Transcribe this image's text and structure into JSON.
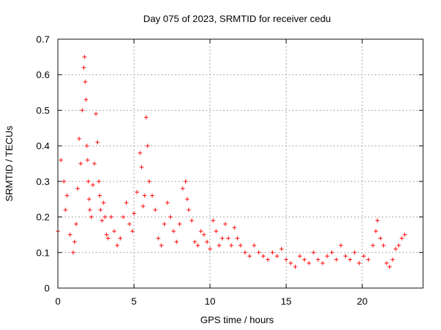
{
  "chart_data": {
    "type": "scatter",
    "title": "Day 075 of 2023, SRMTID for receiver cedu",
    "xlabel": "GPS time / hours",
    "ylabel": "SRMTID / TECUs",
    "xlim": [
      0,
      24
    ],
    "ylim": [
      0,
      0.7
    ],
    "xticks": [
      0,
      5,
      10,
      15,
      20
    ],
    "yticks": [
      0,
      0.1,
      0.2,
      0.3,
      0.4,
      0.5,
      0.6,
      0.7
    ],
    "xtick_labels": [
      "0",
      "5",
      "10",
      "15",
      "20"
    ],
    "ytick_labels": [
      "0",
      "0.1",
      "0.2",
      "0.3",
      "0.4",
      "0.5",
      "0.6",
      "0.7"
    ],
    "grid": true,
    "marker": "+",
    "color": "#ff0000",
    "series": [
      {
        "name": "cedu",
        "x": [
          0.0,
          0.2,
          0.4,
          0.5,
          0.6,
          0.8,
          1.0,
          1.1,
          1.2,
          1.3,
          1.4,
          1.5,
          1.6,
          1.7,
          1.75,
          1.8,
          1.85,
          1.9,
          1.95,
          2.0,
          2.05,
          2.1,
          2.2,
          2.3,
          2.4,
          2.5,
          2.6,
          2.7,
          2.75,
          2.8,
          2.9,
          3.0,
          3.1,
          3.2,
          3.3,
          3.5,
          3.7,
          3.9,
          4.1,
          4.3,
          4.5,
          4.7,
          4.9,
          5.0,
          5.2,
          5.4,
          5.5,
          5.6,
          5.7,
          5.8,
          5.9,
          6.0,
          6.2,
          6.4,
          6.6,
          6.8,
          7.0,
          7.2,
          7.4,
          7.6,
          7.8,
          8.0,
          8.2,
          8.4,
          8.5,
          8.6,
          8.8,
          9.0,
          9.2,
          9.4,
          9.6,
          9.8,
          10.0,
          10.2,
          10.4,
          10.6,
          10.8,
          11.0,
          11.2,
          11.4,
          11.6,
          11.8,
          12.0,
          12.3,
          12.6,
          12.9,
          13.2,
          13.5,
          13.8,
          14.1,
          14.4,
          14.7,
          15.0,
          15.3,
          15.6,
          15.9,
          16.2,
          16.5,
          16.8,
          17.1,
          17.4,
          17.7,
          18.0,
          18.3,
          18.6,
          18.9,
          19.2,
          19.5,
          19.8,
          20.1,
          20.4,
          20.7,
          20.9,
          21.0,
          21.2,
          21.4,
          21.6,
          21.8,
          22.0,
          22.2,
          22.4,
          22.6,
          22.8
        ],
        "y": [
          0.16,
          0.36,
          0.3,
          0.22,
          0.26,
          0.15,
          0.1,
          0.13,
          0.18,
          0.28,
          0.42,
          0.35,
          0.5,
          0.62,
          0.65,
          0.58,
          0.53,
          0.4,
          0.36,
          0.3,
          0.25,
          0.22,
          0.2,
          0.29,
          0.35,
          0.49,
          0.41,
          0.3,
          0.26,
          0.22,
          0.19,
          0.24,
          0.2,
          0.15,
          0.14,
          0.2,
          0.16,
          0.12,
          0.14,
          0.2,
          0.24,
          0.18,
          0.16,
          0.21,
          0.27,
          0.38,
          0.34,
          0.23,
          0.26,
          0.48,
          0.4,
          0.3,
          0.26,
          0.22,
          0.14,
          0.12,
          0.18,
          0.24,
          0.2,
          0.16,
          0.13,
          0.18,
          0.28,
          0.3,
          0.25,
          0.22,
          0.19,
          0.13,
          0.12,
          0.16,
          0.15,
          0.13,
          0.11,
          0.19,
          0.16,
          0.12,
          0.14,
          0.18,
          0.14,
          0.12,
          0.17,
          0.14,
          0.12,
          0.1,
          0.09,
          0.12,
          0.1,
          0.09,
          0.08,
          0.1,
          0.09,
          0.11,
          0.08,
          0.07,
          0.06,
          0.09,
          0.08,
          0.07,
          0.1,
          0.08,
          0.07,
          0.09,
          0.1,
          0.08,
          0.12,
          0.09,
          0.08,
          0.1,
          0.07,
          0.09,
          0.08,
          0.12,
          0.16,
          0.19,
          0.14,
          0.12,
          0.07,
          0.06,
          0.08,
          0.11,
          0.12,
          0.14,
          0.15
        ]
      }
    ]
  }
}
